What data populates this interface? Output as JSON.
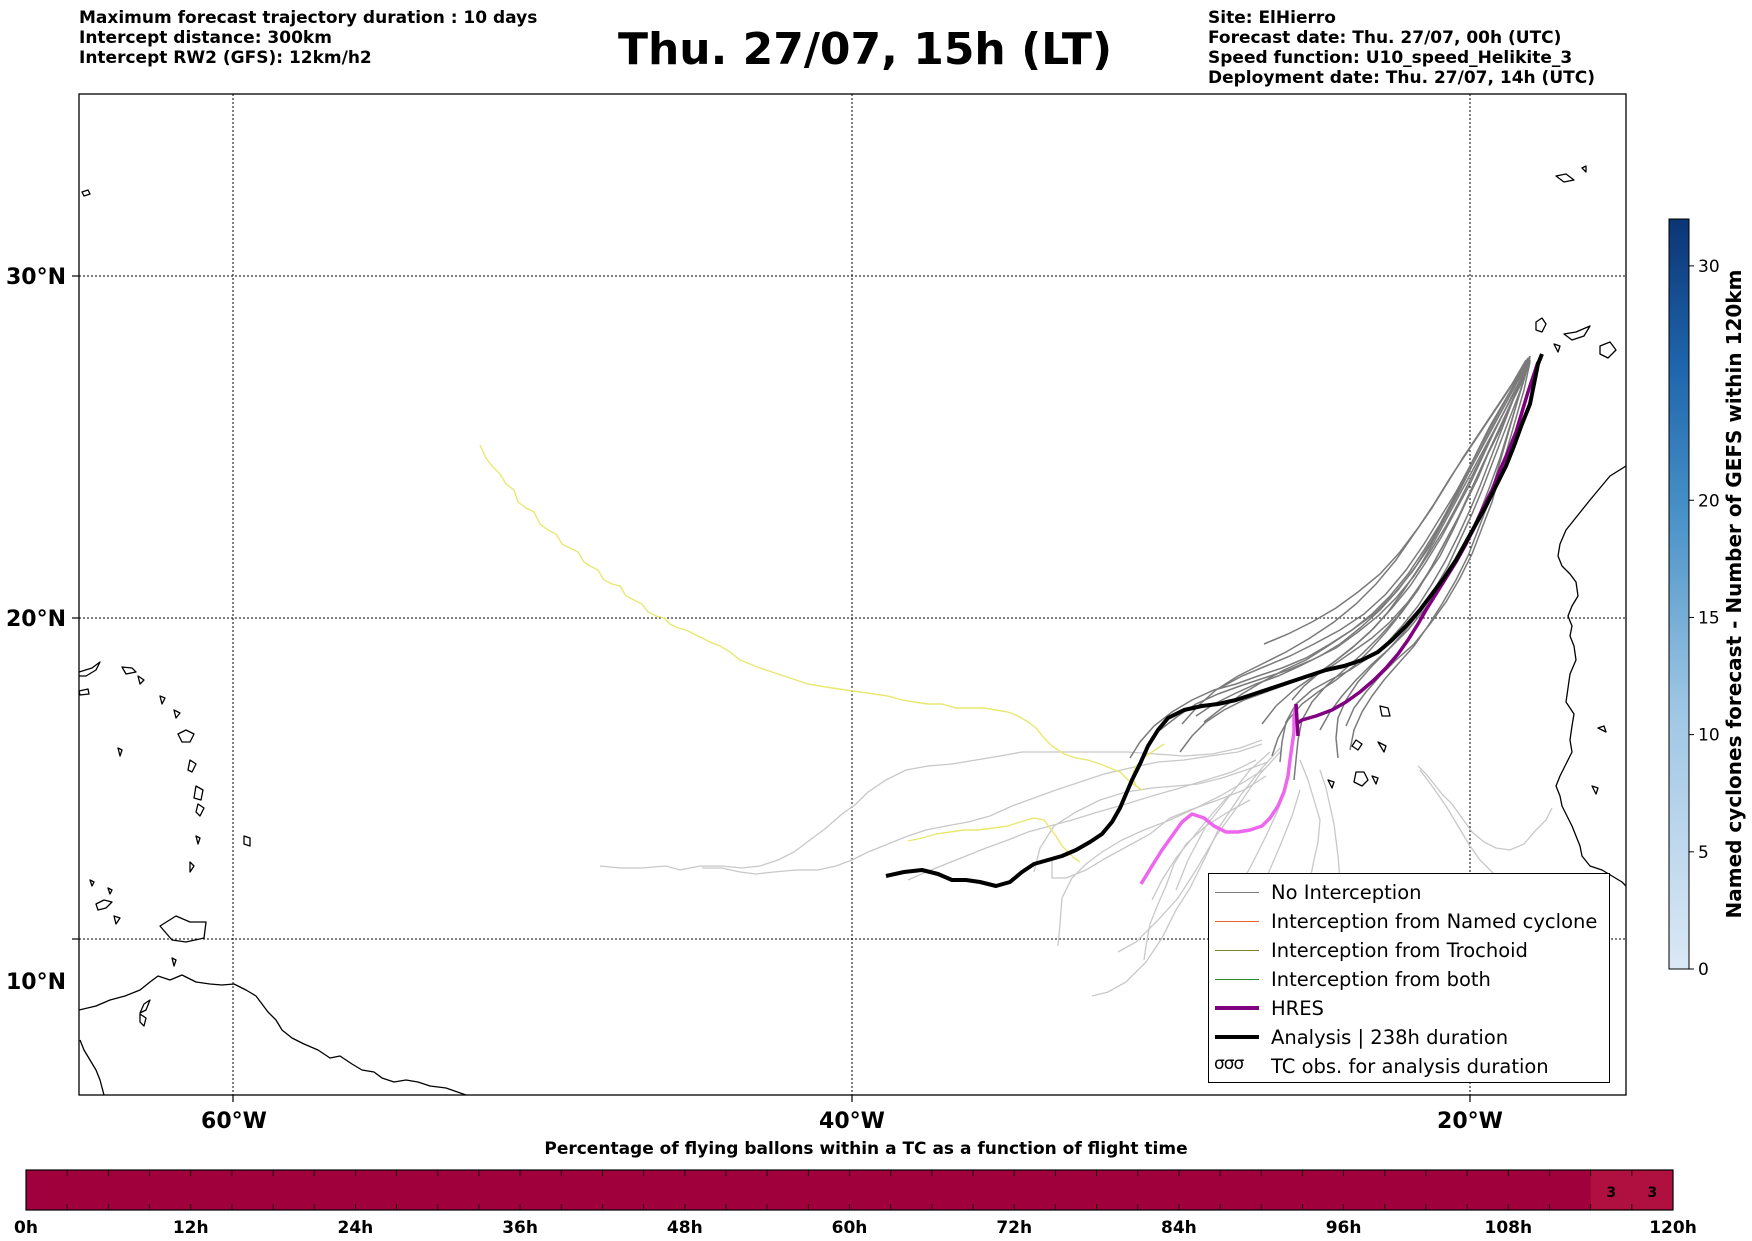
{
  "header": {
    "left_lines": [
      "Maximum forecast trajectory duration : 10 days",
      "Intercept distance: 300km",
      "Intercept RW2 (GFS):  12km/h2"
    ],
    "title": "Thu. 27/07, 15h (LT)",
    "right_lines": [
      "Site: ElHierro",
      "Forecast date: Thu. 27/07, 00h (UTC)",
      "Speed function: U10_speed_Helikite_3",
      "Deployment date: Thu. 27/07, 14h (UTC)"
    ]
  },
  "map": {
    "lat_labels": [
      {
        "value": 30,
        "label": "30°N"
      },
      {
        "value": 20,
        "label": "20°N"
      },
      {
        "value": 10,
        "label": "10°N"
      }
    ],
    "lon_labels": [
      {
        "value": -60,
        "label": "60°W"
      },
      {
        "value": -40,
        "label": "40°W"
      },
      {
        "value": -20,
        "label": "20°W"
      }
    ],
    "colors": {
      "no_interception": "#7a7a7a",
      "no_interception_light": "#c8c8c8",
      "named_cyclone": "#e8622a",
      "trochoid": "#80802a",
      "both": "#2a8a2a",
      "hres": "#800080",
      "hres_light": "#ee66ee",
      "analysis": "#000000",
      "yellow_track": "#e8e870"
    }
  },
  "legend": {
    "items": [
      {
        "label": "No Interception",
        "style": "gray"
      },
      {
        "label": "Interception from Named cyclone",
        "style": "orange"
      },
      {
        "label": "Interception from Trochoid",
        "style": "olive"
      },
      {
        "label": "Interception from both",
        "style": "green"
      },
      {
        "label": "HRES",
        "style": "purple"
      },
      {
        "label": "Analysis | 238h duration",
        "style": "black"
      },
      {
        "label": "TC obs. for analysis duration",
        "style": "symbol",
        "symbol": "σσσ"
      }
    ]
  },
  "colorbar": {
    "label": "Named cyclones forecast - Number of GEFS within 120km",
    "ticks": [
      0,
      5,
      10,
      15,
      20,
      30
    ],
    "max": 32,
    "color_low": "#dbe8f6",
    "color_high": "#0b3574"
  },
  "bottom_bar": {
    "title": "Percentage of flying ballons within a TC as a function of flight time",
    "tick_labels": [
      "0h",
      "12h",
      "24h",
      "36h",
      "48h",
      "60h",
      "72h",
      "84h",
      "96h",
      "108h",
      "120h"
    ],
    "segments": 40,
    "fill_color": "#a0003c",
    "light_color": "#b0103f",
    "values": [
      {
        "segment": 38,
        "value": "3"
      },
      {
        "segment": 39,
        "value": "3"
      }
    ]
  }
}
